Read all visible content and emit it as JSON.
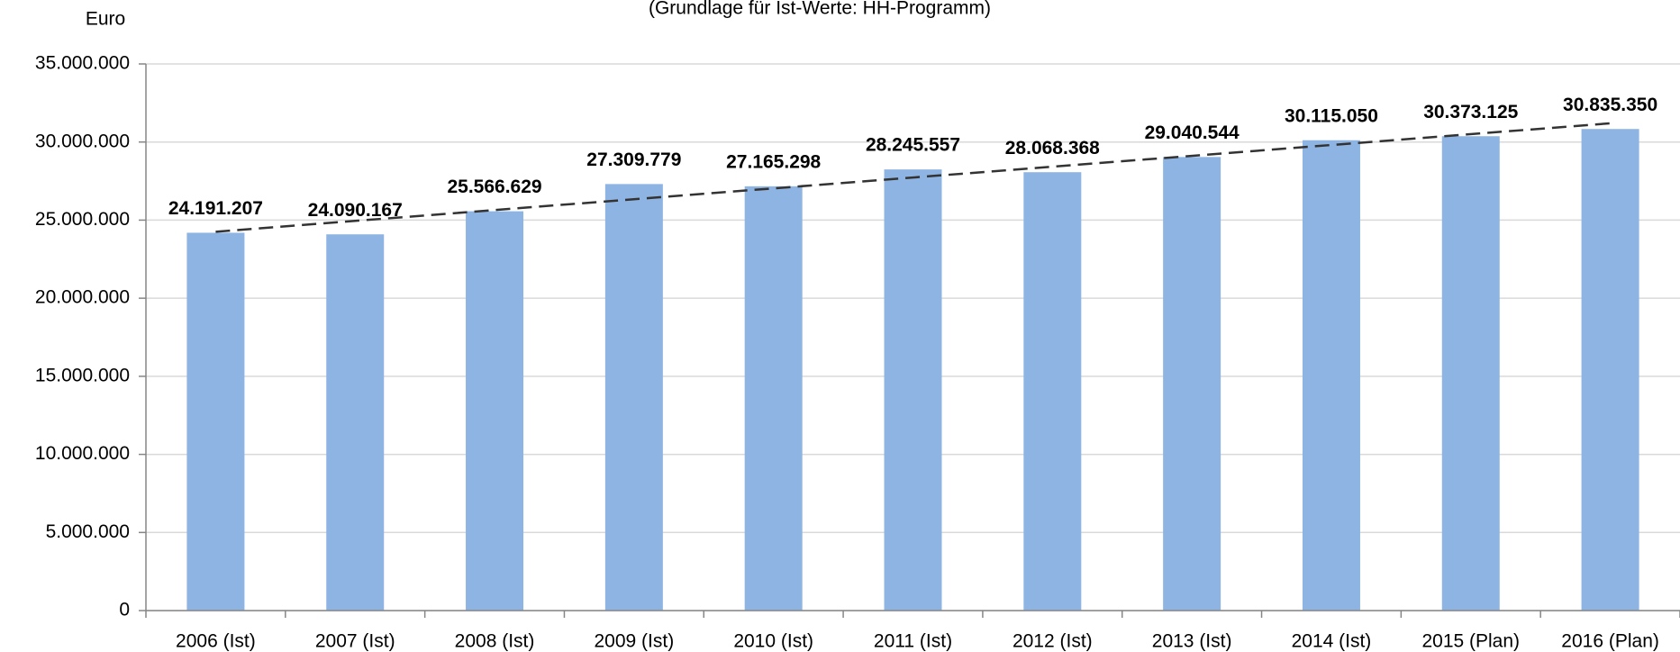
{
  "chart_data": {
    "type": "bar",
    "subtitle": "(Grundlage für Ist-Werte: HH-Programm)",
    "y_label": "Euro",
    "categories": [
      "2006 (Ist)",
      "2007 (Ist)",
      "2008 (Ist)",
      "2009 (Ist)",
      "2010 (Ist)",
      "2011 (Ist)",
      "2012 (Ist)",
      "2013 (Ist)",
      "2014 (Ist)",
      "2015 (Plan)",
      "2016 (Plan)"
    ],
    "values": [
      24191207,
      24090167,
      25566629,
      27309779,
      27165298,
      28245557,
      28068368,
      29040544,
      30115050,
      30373125,
      30835350
    ],
    "value_labels": [
      "24.191.207",
      "24.090.167",
      "25.566.629",
      "27.309.779",
      "27.165.298",
      "28.245.557",
      "28.068.368",
      "29.040.544",
      "30.115.050",
      "30.373.125",
      "30.835.350"
    ],
    "color": "#8eb4e3",
    "ylim": [
      0,
      35000000
    ],
    "yticks": [
      0,
      {
        "value": 5000000,
        "label": "5.000.000"
      },
      {
        "value": 10000000,
        "label": "10.000.000"
      },
      {
        "value": 15000000,
        "label": "15.000.000"
      },
      {
        "value": 20000000,
        "label": "20.000.000"
      },
      {
        "value": 25000000,
        "label": "25.000.000"
      },
      {
        "value": 30000000,
        "label": "30.000.000"
      },
      {
        "value": 35000000,
        "label": "35.000.000"
      }
    ],
    "grid": true,
    "trendline": "linear"
  }
}
